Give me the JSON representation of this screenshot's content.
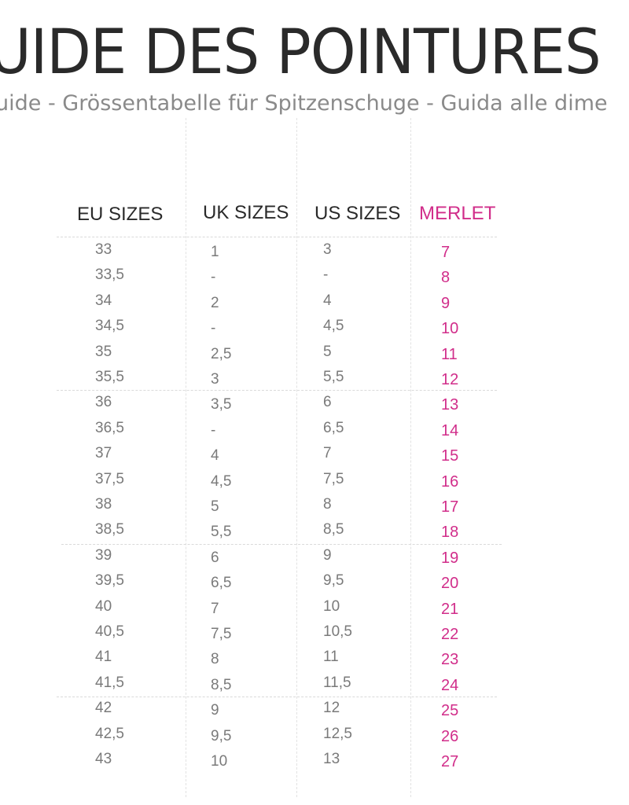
{
  "title": "UIDE DES POINTURES",
  "subtitle": "uide - Grössentabelle für Spitzenschuge - Guida alle dime",
  "table": {
    "headers": {
      "eu": "EU SIZES",
      "uk": "UK SIZES",
      "us": "US SIZES",
      "merlet": "MERLET"
    },
    "rows": [
      {
        "eu": "33",
        "uk": "1",
        "us": "3",
        "merlet": "7"
      },
      {
        "eu": "33,5",
        "uk": "-",
        "us": "-",
        "merlet": "8"
      },
      {
        "eu": "34",
        "uk": "2",
        "us": "4",
        "merlet": "9"
      },
      {
        "eu": "34,5",
        "uk": "-",
        "us": "4,5",
        "merlet": "10"
      },
      {
        "eu": "35",
        "uk": "2,5",
        "us": "5",
        "merlet": "11"
      },
      {
        "eu": "35,5",
        "uk": "3",
        "us": "5,5",
        "merlet": "12"
      },
      {
        "eu": "36",
        "uk": "3,5",
        "us": "6",
        "merlet": "13"
      },
      {
        "eu": "36,5",
        "uk": "-",
        "us": "6,5",
        "merlet": "14"
      },
      {
        "eu": "37",
        "uk": "4",
        "us": "7",
        "merlet": "15"
      },
      {
        "eu": "37,5",
        "uk": "4,5",
        "us": "7,5",
        "merlet": "16"
      },
      {
        "eu": "38",
        "uk": "5",
        "us": "8",
        "merlet": "17"
      },
      {
        "eu": "38,5",
        "uk": "5,5",
        "us": "8,5",
        "merlet": "18"
      },
      {
        "eu": "39",
        "uk": "6",
        "us": "9",
        "merlet": "19"
      },
      {
        "eu": "39,5",
        "uk": "6,5",
        "us": "9,5",
        "merlet": "20"
      },
      {
        "eu": "40",
        "uk": "7",
        "us": "10",
        "merlet": "21"
      },
      {
        "eu": "40,5",
        "uk": "7,5",
        "us": "10,5",
        "merlet": "22"
      },
      {
        "eu": "41",
        "uk": "8",
        "us": "11",
        "merlet": "23"
      },
      {
        "eu": "41,5",
        "uk": "8,5",
        "us": "11,5",
        "merlet": "24"
      },
      {
        "eu": "42",
        "uk": "9",
        "us": "12",
        "merlet": "25"
      },
      {
        "eu": "42,5",
        "uk": "9,5",
        "us": "12,5",
        "merlet": "26"
      },
      {
        "eu": "43",
        "uk": "10",
        "us": "13",
        "merlet": "27"
      }
    ]
  },
  "colors": {
    "title": "#2a2a2a",
    "subtitle": "#8a8a8a",
    "cell_text": "#7a7a7a",
    "merlet_accent": "#d12d8a"
  }
}
